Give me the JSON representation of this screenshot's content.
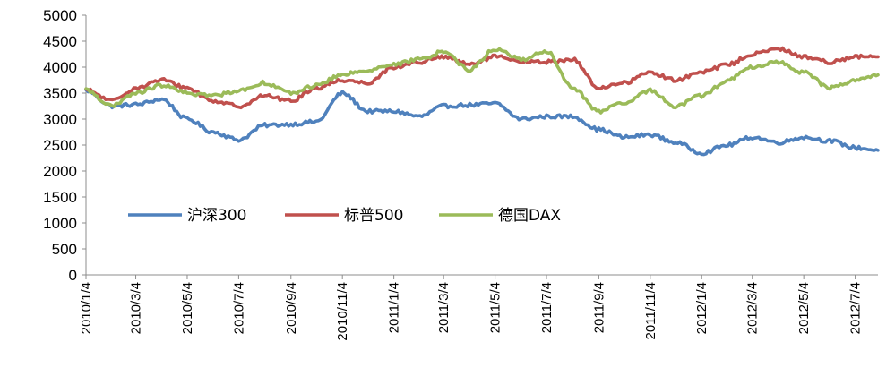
{
  "chart_data": {
    "type": "line",
    "title": "",
    "xlabel": "",
    "ylabel": "",
    "ylim": [
      0,
      5000
    ],
    "yticks": [
      0,
      500,
      1000,
      1500,
      2000,
      2500,
      3000,
      3500,
      4000,
      4500,
      5000
    ],
    "x_tick_labels": [
      "2010/1/4",
      "2010/3/4",
      "2010/5/4",
      "2010/7/4",
      "2010/9/4",
      "2010/11/4",
      "2011/1/4",
      "2011/3/4",
      "2011/5/4",
      "2011/7/4",
      "2011/9/4",
      "2011/11/4",
      "2012/1/4",
      "2012/3/4",
      "2012/5/4",
      "2012/7/4"
    ],
    "grid": false,
    "legend_position": "lower-left",
    "x": [
      "2010/1/4",
      "2010/2/4",
      "2010/3/4",
      "2010/4/4",
      "2010/5/4",
      "2010/6/4",
      "2010/7/4",
      "2010/8/4",
      "2010/9/4",
      "2010/10/4",
      "2010/11/4",
      "2010/12/4",
      "2011/1/4",
      "2011/2/4",
      "2011/3/4",
      "2011/4/4",
      "2011/5/4",
      "2011/6/4",
      "2011/7/4",
      "2011/8/4",
      "2011/9/4",
      "2011/10/4",
      "2011/11/4",
      "2011/12/4",
      "2012/1/4",
      "2012/2/4",
      "2012/3/4",
      "2012/4/4",
      "2012/5/4",
      "2012/6/4",
      "2012/7/4",
      "2012/7/31"
    ],
    "series": [
      {
        "name": "沪深300",
        "color": "#4f81bd",
        "values": [
          3550,
          3250,
          3280,
          3380,
          3000,
          2750,
          2600,
          2880,
          2900,
          2950,
          3500,
          3150,
          3150,
          3050,
          3250,
          3270,
          3300,
          3000,
          3050,
          3050,
          2800,
          2650,
          2700,
          2550,
          2350,
          2500,
          2650,
          2550,
          2650,
          2580,
          2450,
          2400
        ]
      },
      {
        "name": "标普500",
        "color": "#c0504d",
        "values": [
          3560,
          3350,
          3600,
          3750,
          3600,
          3350,
          3250,
          3450,
          3350,
          3600,
          3750,
          3700,
          4000,
          4100,
          4200,
          4050,
          4200,
          4100,
          4100,
          4150,
          3600,
          3700,
          3900,
          3750,
          3900,
          4050,
          4250,
          4350,
          4200,
          4100,
          4200,
          4200
        ]
      },
      {
        "name": "德国DAX",
        "color": "#9bbb59",
        "values": [
          3560,
          3250,
          3500,
          3650,
          3500,
          3450,
          3550,
          3700,
          3500,
          3650,
          3850,
          3950,
          4050,
          4150,
          4300,
          3950,
          4350,
          4150,
          4300,
          3600,
          3150,
          3300,
          3550,
          3250,
          3450,
          3750,
          4000,
          4100,
          3900,
          3600,
          3750,
          3850
        ]
      }
    ]
  }
}
